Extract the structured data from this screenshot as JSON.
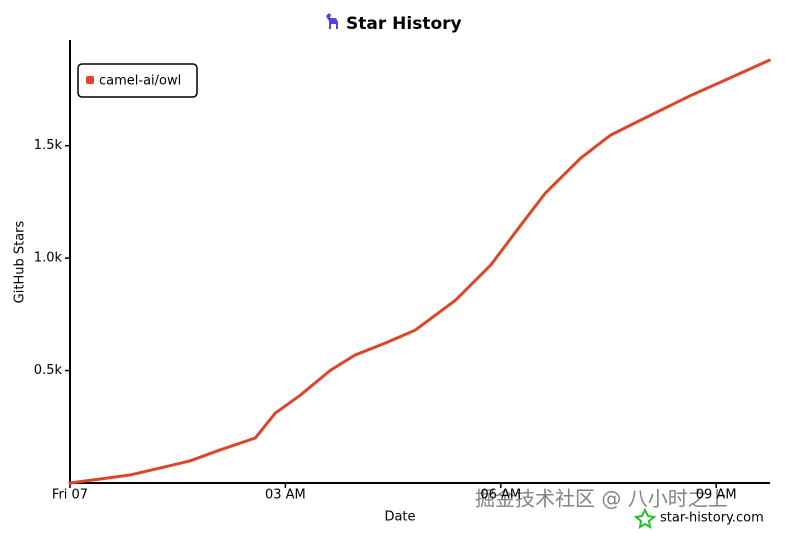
{
  "chart_data": {
    "type": "line",
    "title": "Star History",
    "x_label": "Date",
    "y_label": "GitHub Stars",
    "x": [
      0,
      0.42,
      0.84,
      1.26,
      1.67,
      2.09,
      2.58,
      2.86,
      3.21,
      3.63,
      3.97,
      4.39,
      4.81,
      5.37,
      5.86,
      6.28,
      6.62,
      7.11,
      7.53,
      8.09,
      8.65,
      9.21,
      9.74
    ],
    "series": [
      {
        "name": "camel-ai/owl",
        "color": "#dd4528",
        "values": [
          0,
          18,
          36,
          67,
          98,
          147,
          200,
          311,
          391,
          502,
          569,
          622,
          680,
          813,
          969,
          1147,
          1289,
          1444,
          1547,
          1636,
          1724,
          1804,
          1880
        ]
      }
    ],
    "xlim": [
      0,
      9.75
    ],
    "xticks": [
      {
        "value": 0,
        "label": "Fri 07"
      },
      {
        "value": 3,
        "label": "03 AM"
      },
      {
        "value": 6,
        "label": "06 AM"
      },
      {
        "value": 9,
        "label": "09 AM"
      }
    ],
    "ylim": [
      0,
      1970
    ],
    "yticks": [
      {
        "value": 500,
        "label": "0.5k"
      },
      {
        "value": 1000,
        "label": "1.0k"
      },
      {
        "value": 1500,
        "label": "1.5k"
      }
    ],
    "legend": "top-left",
    "watermark": "掘金技术社区 @ 八小时之上",
    "source": "star-history.com"
  }
}
